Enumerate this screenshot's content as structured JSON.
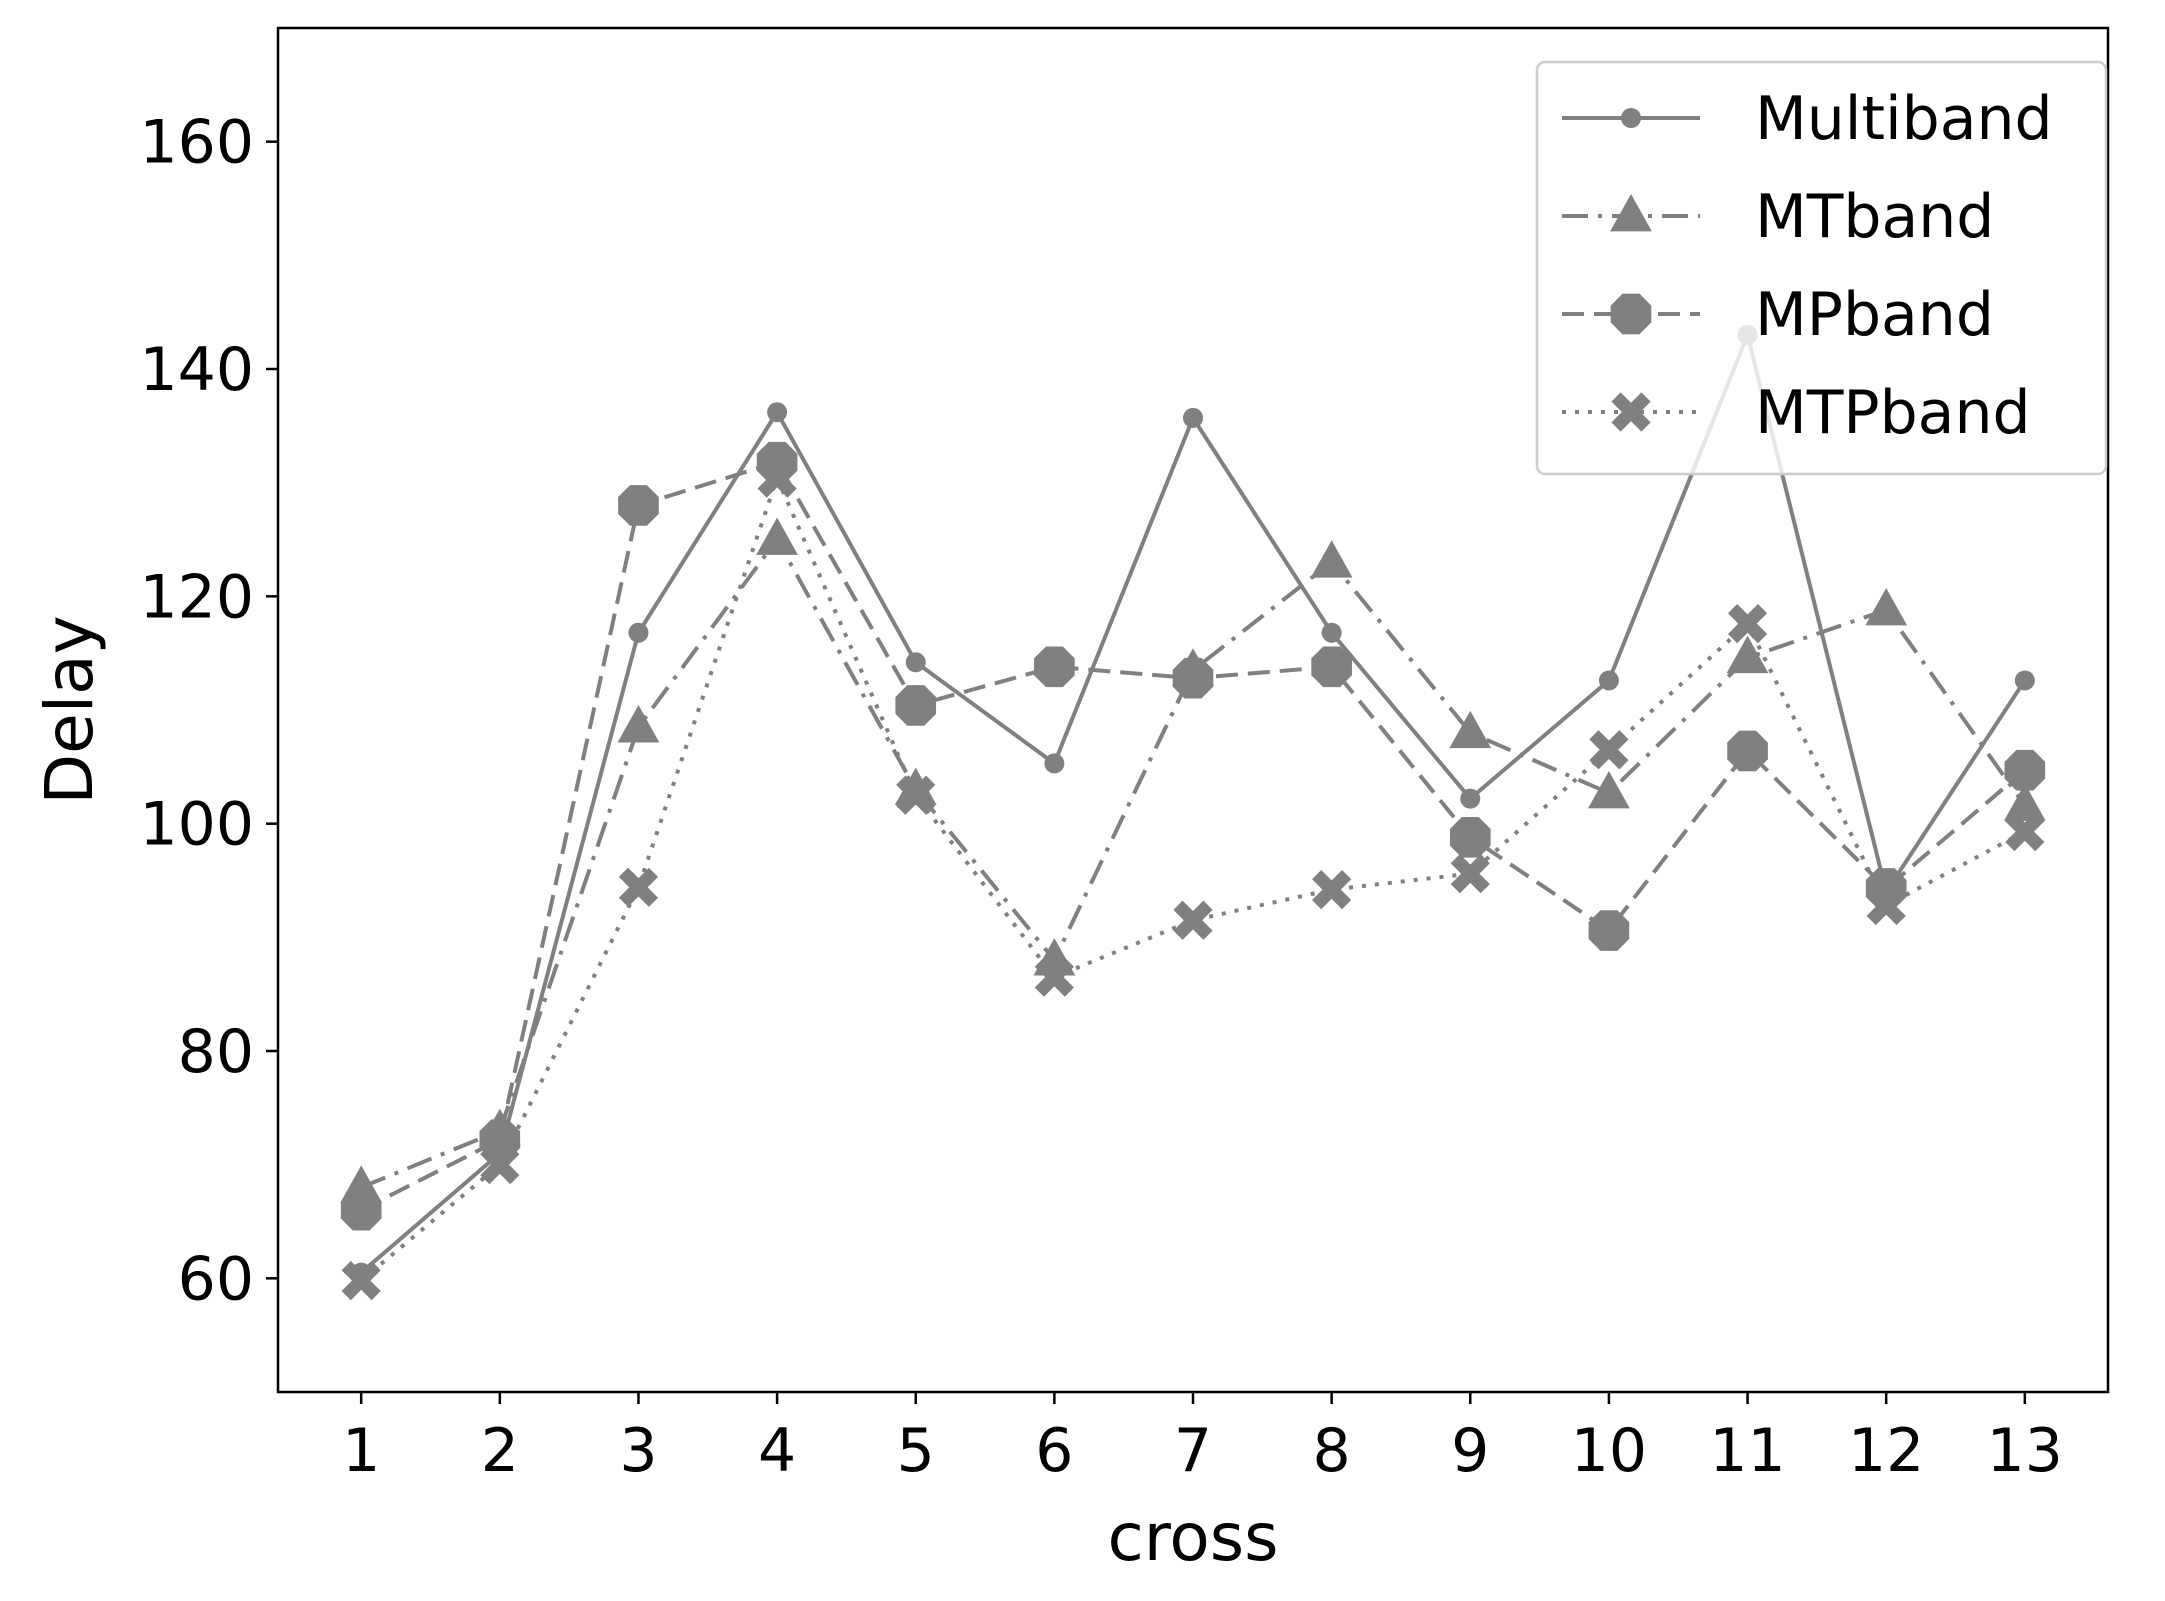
{
  "chart_data": {
    "type": "line",
    "title": "",
    "xlabel": "cross",
    "ylabel": "Delay",
    "x": [
      1,
      2,
      3,
      4,
      5,
      6,
      7,
      8,
      9,
      10,
      11,
      12,
      13
    ],
    "xlim": [
      0.4,
      13.6
    ],
    "ylim": [
      50,
      170
    ],
    "yticks": [
      60,
      80,
      100,
      120,
      140,
      160
    ],
    "grid": false,
    "legend_position": "top-right",
    "color": "#808080",
    "series": [
      {
        "name": "Multiband",
        "marker": "circle",
        "linestyle": "solid",
        "values": [
          60.5,
          71.0,
          116.8,
          136.2,
          114.2,
          105.3,
          135.7,
          116.8,
          102.2,
          112.6,
          143.0,
          94.0,
          112.6
        ]
      },
      {
        "name": "MTband",
        "marker": "triangle",
        "linestyle": "dashdot",
        "values": [
          68.0,
          73.0,
          108.5,
          125.0,
          103.0,
          88.0,
          113.5,
          123.0,
          108.0,
          102.7,
          114.6,
          118.8,
          101.6
        ]
      },
      {
        "name": "MPband",
        "marker": "octagon",
        "linestyle": "dashed",
        "values": [
          66.0,
          72.2,
          128.0,
          131.8,
          110.4,
          113.8,
          112.8,
          113.8,
          98.8,
          90.6,
          106.4,
          94.3,
          104.7
        ]
      },
      {
        "name": "MTPband",
        "marker": "x",
        "linestyle": "dotted",
        "values": [
          59.8,
          70.0,
          94.4,
          130.4,
          102.5,
          86.5,
          91.5,
          94.2,
          95.6,
          106.5,
          117.6,
          92.8,
          99.3
        ]
      }
    ]
  }
}
